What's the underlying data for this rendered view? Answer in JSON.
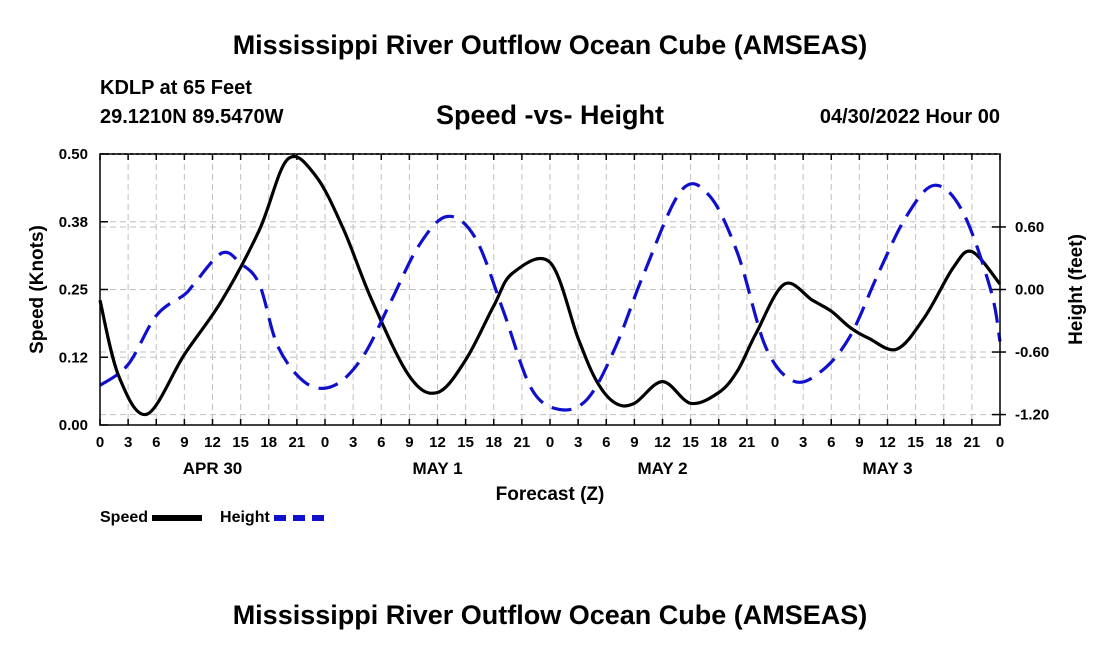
{
  "header": {
    "title": "Mississippi River Outflow Ocean Cube (AMSEAS)",
    "station": "KDLP at 65 Feet",
    "coords": "29.1210N  89.5470W",
    "subtitle": "Speed -vs- Height",
    "datetime": "04/30/2022 Hour 00"
  },
  "footer": {
    "title": "Mississippi River Outflow Ocean Cube (AMSEAS)"
  },
  "legend": {
    "speed_label": "Speed",
    "height_label": "Height"
  },
  "colors": {
    "speed": "#000000",
    "height": "#1010cc",
    "grid": "#c0c0c0"
  },
  "chart_data": {
    "type": "line",
    "title": "Speed -vs- Height",
    "xlabel": "Forecast (Z)",
    "ylabel": "Speed (Knots)",
    "y2label": "Height (feet)",
    "xlim": [
      0,
      96
    ],
    "ylim": [
      0,
      0.5
    ],
    "y2lim": [
      -1.3,
      1.3
    ],
    "yticks": [
      "0.00",
      "0.12",
      "0.25",
      "0.38",
      "0.50"
    ],
    "y2ticks": [
      "-1.20",
      "-0.60",
      "0.00",
      "0.60"
    ],
    "xtick_labels": [
      "0",
      "3",
      "6",
      "9",
      "12",
      "15",
      "18",
      "21",
      "0",
      "3",
      "6",
      "9",
      "12",
      "15",
      "18",
      "21",
      "0",
      "3",
      "6",
      "9",
      "12",
      "15",
      "18",
      "21",
      "0",
      "3",
      "6",
      "9",
      "12",
      "15",
      "18",
      "21",
      "0"
    ],
    "day_labels": [
      {
        "label": "APR 30",
        "x": 12
      },
      {
        "label": "MAY 1",
        "x": 36
      },
      {
        "label": "MAY 2",
        "x": 60
      },
      {
        "label": "MAY 3",
        "x": 84
      }
    ],
    "grid": true,
    "series": [
      {
        "name": "Speed",
        "axis": "left",
        "style": "solid",
        "x": [
          0,
          2,
          5,
          9,
          13,
          17,
          20,
          23,
          26,
          29,
          33,
          36,
          39,
          42,
          44,
          48,
          51,
          53,
          55,
          57,
          60,
          63,
          66,
          68,
          70,
          73,
          76,
          78,
          80,
          82,
          85,
          88,
          91,
          93,
          96
        ],
        "y": [
          0.23,
          0.09,
          0.02,
          0.13,
          0.23,
          0.36,
          0.49,
          0.46,
          0.36,
          0.23,
          0.09,
          0.06,
          0.12,
          0.22,
          0.28,
          0.3,
          0.16,
          0.08,
          0.04,
          0.04,
          0.08,
          0.04,
          0.06,
          0.1,
          0.17,
          0.26,
          0.23,
          0.21,
          0.18,
          0.16,
          0.14,
          0.2,
          0.29,
          0.32,
          0.26
        ]
      },
      {
        "name": "Height",
        "axis": "right",
        "style": "dashed",
        "x": [
          0,
          3,
          6,
          9,
          10,
          13,
          15,
          17,
          19,
          22,
          25,
          28,
          31,
          34,
          37,
          40,
          43,
          46,
          49,
          52,
          55,
          58,
          62,
          65,
          68,
          71,
          74,
          77,
          80,
          83,
          86,
          89,
          92,
          95,
          96
        ],
        "y": [
          -0.92,
          -0.72,
          -0.25,
          -0.05,
          0.05,
          0.35,
          0.25,
          0.05,
          -0.55,
          -0.9,
          -0.92,
          -0.65,
          -0.12,
          0.42,
          0.7,
          0.5,
          -0.2,
          -0.95,
          -1.15,
          -1.05,
          -0.55,
          0.15,
          0.95,
          0.9,
          0.35,
          -0.55,
          -0.88,
          -0.78,
          -0.45,
          0.15,
          0.7,
          1.0,
          0.75,
          0.0,
          -0.5
        ]
      }
    ]
  }
}
